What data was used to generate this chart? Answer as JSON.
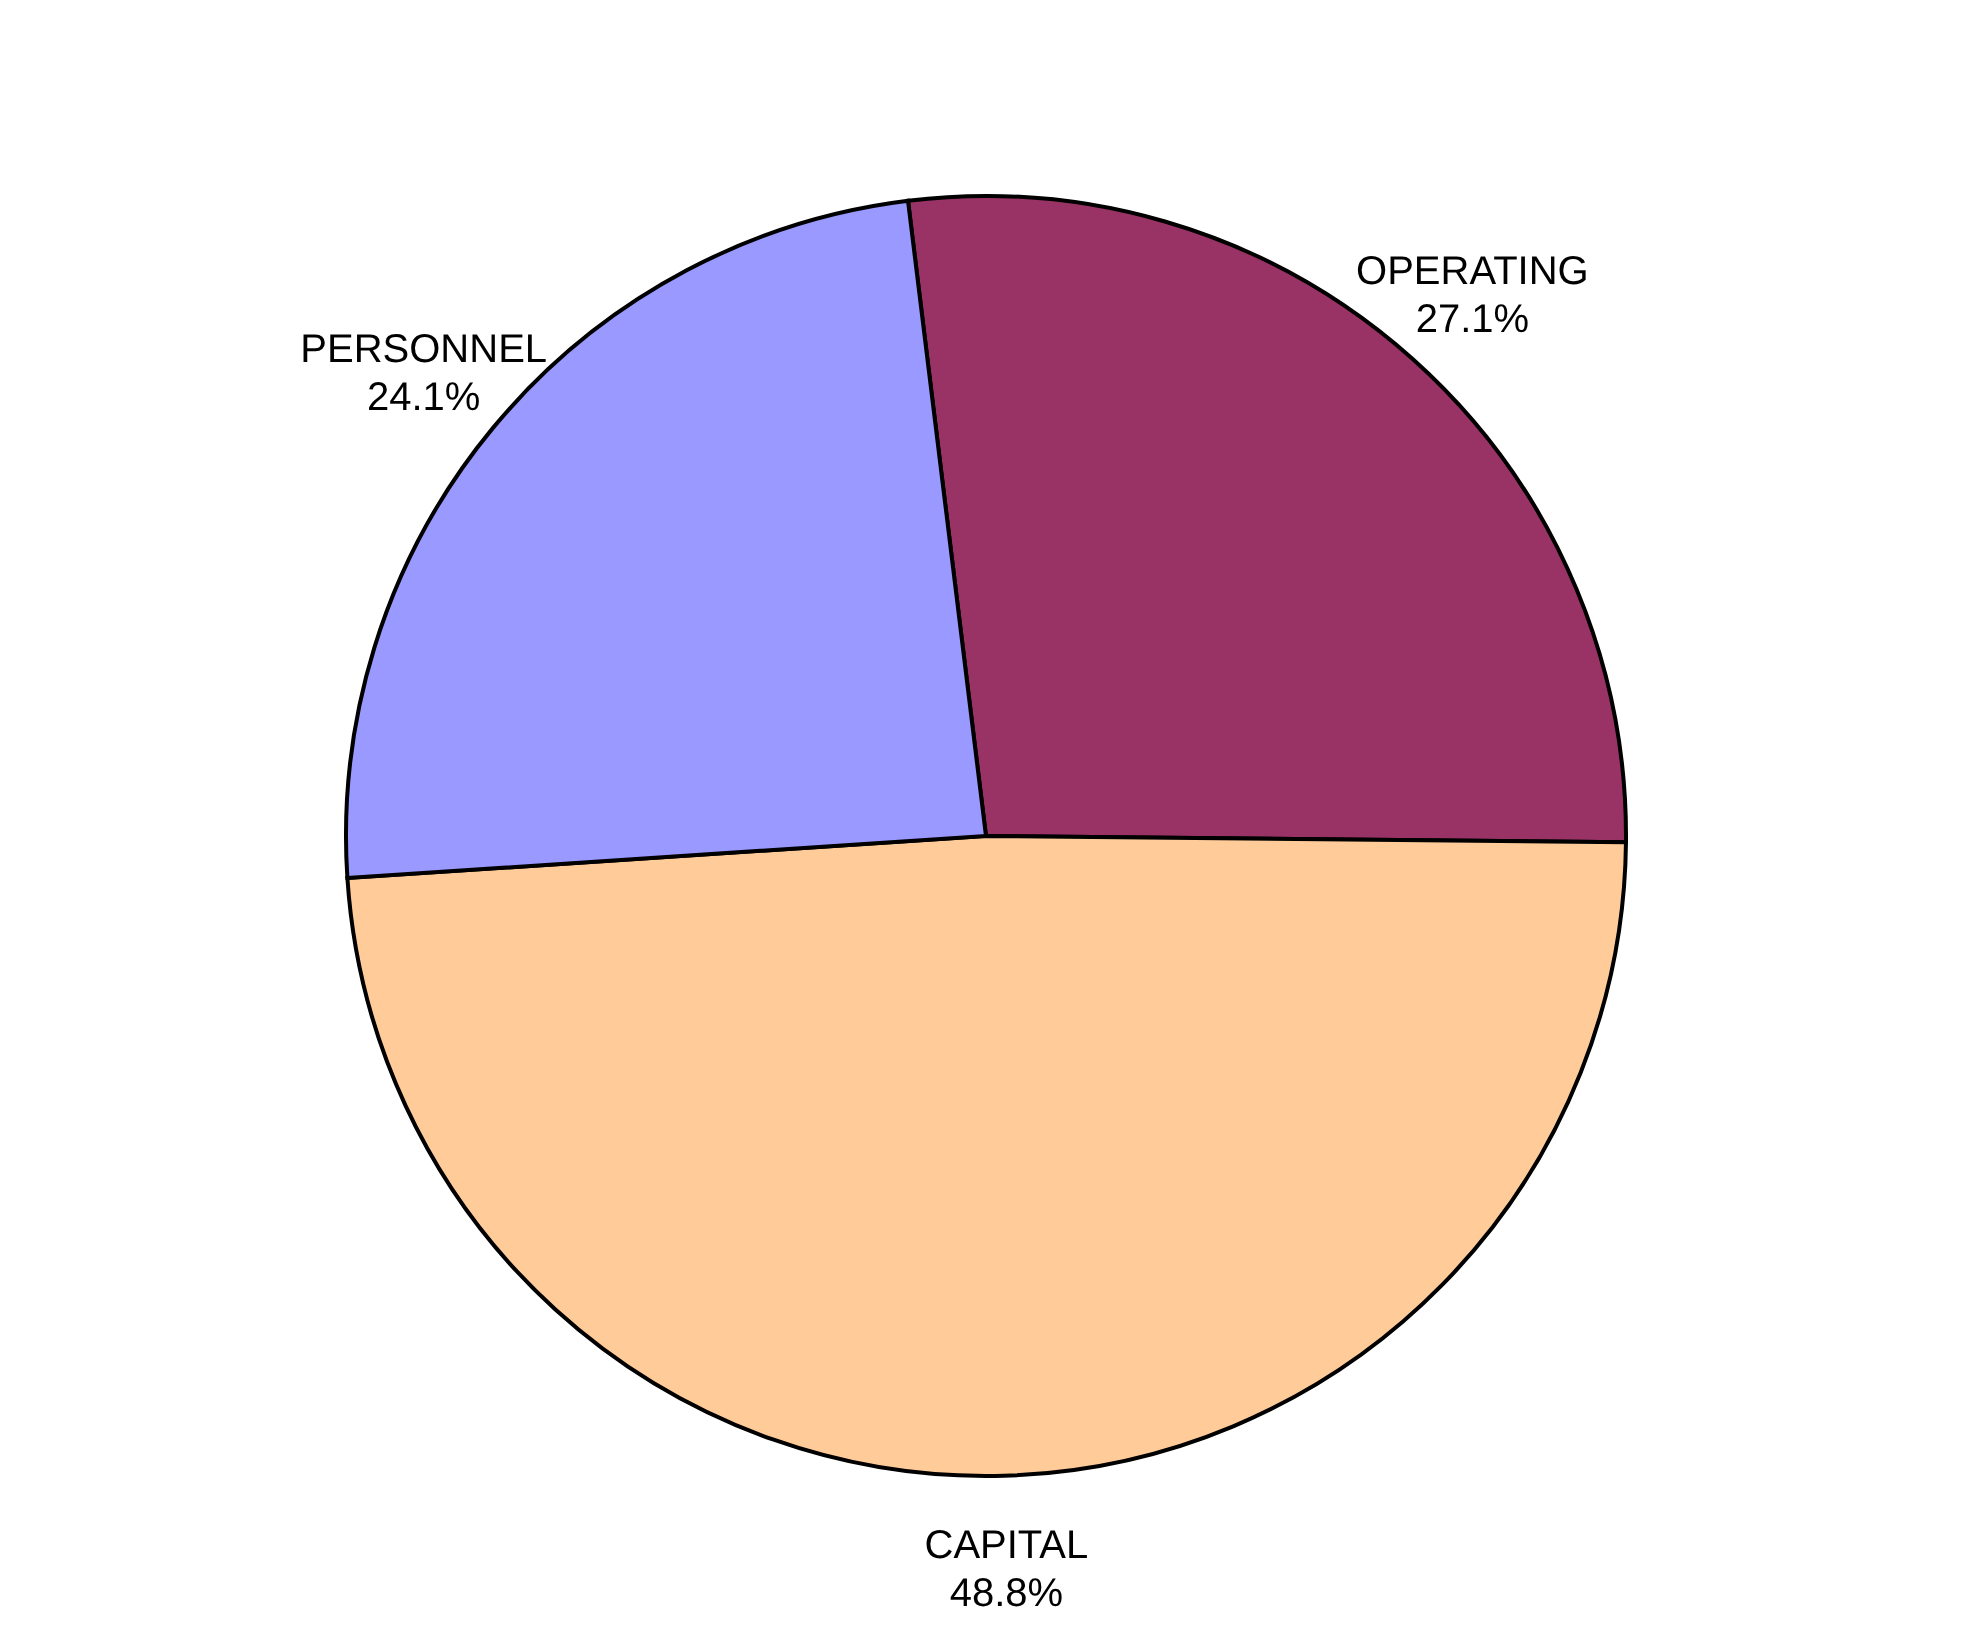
{
  "chart_data": {
    "type": "pie",
    "categories": [
      "OPERATING",
      "CAPITAL",
      "PERSONNEL"
    ],
    "values": [
      27.1,
      48.8,
      24.1
    ],
    "value_labels": [
      "27.1%",
      "48.8%",
      "24.1%"
    ],
    "colors": [
      "#993366",
      "#ffcc99",
      "#9999ff"
    ]
  }
}
